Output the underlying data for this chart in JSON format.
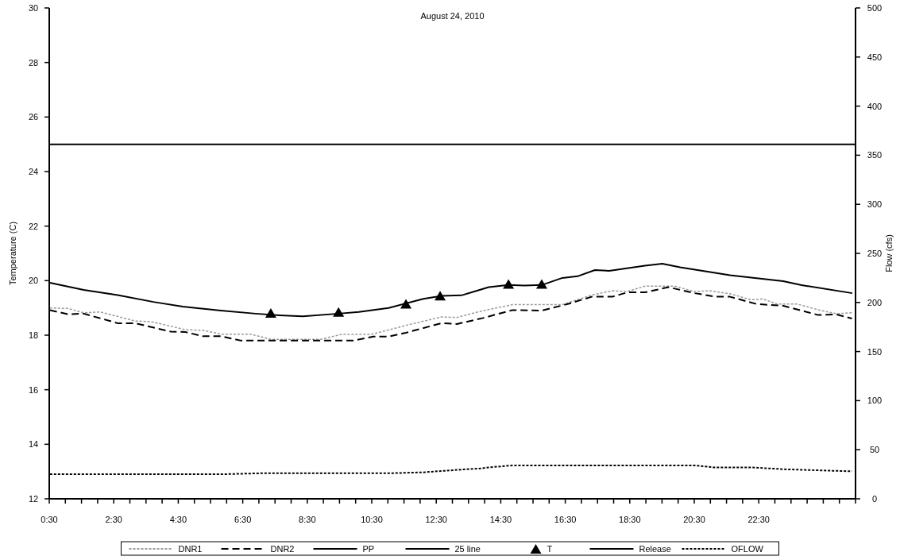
{
  "chart_data": {
    "type": "line",
    "title": "August 24, 2010",
    "ylabel": "Temperature (C)",
    "y2label": "Flow (cfs)",
    "xlim": [
      0.5,
      25.5
    ],
    "xticks": [
      {
        "value": 0.5,
        "label": "0:30"
      },
      {
        "value": 1,
        "label": null
      },
      {
        "value": 1.5,
        "label": null
      },
      {
        "value": 2,
        "label": null
      },
      {
        "value": 2.5,
        "label": "2:30"
      },
      {
        "value": 3,
        "label": null
      },
      {
        "value": 3.5,
        "label": null
      },
      {
        "value": 4,
        "label": null
      },
      {
        "value": 4.5,
        "label": "4:30"
      },
      {
        "value": 5,
        "label": null
      },
      {
        "value": 5.5,
        "label": null
      },
      {
        "value": 6,
        "label": null
      },
      {
        "value": 6.5,
        "label": "6:30"
      },
      {
        "value": 7,
        "label": null
      },
      {
        "value": 7.5,
        "label": null
      },
      {
        "value": 8,
        "label": null
      },
      {
        "value": 8.5,
        "label": "8:30"
      },
      {
        "value": 9,
        "label": null
      },
      {
        "value": 9.5,
        "label": null
      },
      {
        "value": 10,
        "label": null
      },
      {
        "value": 10.5,
        "label": "10:30"
      },
      {
        "value": 11,
        "label": null
      },
      {
        "value": 11.5,
        "label": null
      },
      {
        "value": 12,
        "label": null
      },
      {
        "value": 12.5,
        "label": "12:30"
      },
      {
        "value": 13,
        "label": null
      },
      {
        "value": 13.5,
        "label": null
      },
      {
        "value": 14,
        "label": null
      },
      {
        "value": 14.5,
        "label": "14:30"
      },
      {
        "value": 15,
        "label": null
      },
      {
        "value": 15.5,
        "label": null
      },
      {
        "value": 16,
        "label": null
      },
      {
        "value": 16.5,
        "label": "16:30"
      },
      {
        "value": 17,
        "label": null
      },
      {
        "value": 17.5,
        "label": null
      },
      {
        "value": 18,
        "label": null
      },
      {
        "value": 18.5,
        "label": "18:30"
      },
      {
        "value": 19,
        "label": null
      },
      {
        "value": 19.5,
        "label": null
      },
      {
        "value": 20,
        "label": null
      },
      {
        "value": 20.5,
        "label": "20:30"
      },
      {
        "value": 21,
        "label": null
      },
      {
        "value": 21.5,
        "label": null
      },
      {
        "value": 22,
        "label": null
      },
      {
        "value": 22.5,
        "label": "22:30"
      },
      {
        "value": 23,
        "label": null
      },
      {
        "value": 23.5,
        "label": null
      },
      {
        "value": 24,
        "label": null
      },
      {
        "value": 24.5,
        "label": null
      },
      {
        "value": 25,
        "label": null
      },
      {
        "value": 25.5,
        "label": null
      }
    ],
    "ylim": [
      12,
      30
    ],
    "yticks": [
      12,
      14,
      16,
      18,
      20,
      22,
      24,
      26,
      28,
      30
    ],
    "y2lim": [
      0,
      500
    ],
    "y2ticks": [
      0,
      50,
      100,
      150,
      200,
      250,
      300,
      350,
      400,
      450,
      500
    ],
    "grid": false,
    "legend": "bottom",
    "series": [
      {
        "name": "DNR1",
        "color": "#9a9a9a",
        "line_style": "dotted",
        "x": [
          0.52,
          1.07,
          1.57,
          2.08,
          2.62,
          3.16,
          3.63,
          4.27,
          4.71,
          5.27,
          5.82,
          6.73,
          7.37,
          8.09,
          8.92,
          9.56,
          10.48,
          11.56,
          12.66,
          13.14,
          13.95,
          14.86,
          15.77,
          16.41,
          17.32,
          17.96,
          18.43,
          18.97,
          19.88,
          20.52,
          20.97,
          21.61,
          22.25,
          22.62,
          23.07,
          23.7,
          24.44,
          24.9,
          25.39
        ],
        "values": [
          19.0,
          18.98,
          18.82,
          18.85,
          18.69,
          18.52,
          18.5,
          18.33,
          18.2,
          18.18,
          18.04,
          18.04,
          17.85,
          17.85,
          17.85,
          18.03,
          18.03,
          18.36,
          18.67,
          18.65,
          18.9,
          19.12,
          19.12,
          19.12,
          19.47,
          19.63,
          19.6,
          19.8,
          19.8,
          19.6,
          19.63,
          19.52,
          19.3,
          19.33,
          19.14,
          19.14,
          18.9,
          18.79,
          18.82
        ]
      },
      {
        "name": "DNR2",
        "color": "#000000",
        "line_style": "dashed",
        "x": [
          0.52,
          1.07,
          1.57,
          2.62,
          3.16,
          4.27,
          4.71,
          5.27,
          5.82,
          6.45,
          8.09,
          9.91,
          10.55,
          11.02,
          11.56,
          12.66,
          13.14,
          13.95,
          14.86,
          15.77,
          16.6,
          17.32,
          17.96,
          18.43,
          18.97,
          19.7,
          20.52,
          21.16,
          21.61,
          22.44,
          23.26,
          24.34,
          24.9,
          25.39
        ],
        "values": [
          18.92,
          18.77,
          18.79,
          18.44,
          18.44,
          18.13,
          18.12,
          17.96,
          17.96,
          17.8,
          17.8,
          17.8,
          17.95,
          17.95,
          18.09,
          18.44,
          18.41,
          18.63,
          18.92,
          18.9,
          19.15,
          19.41,
          19.41,
          19.57,
          19.57,
          19.76,
          19.54,
          19.41,
          19.41,
          19.14,
          19.08,
          18.74,
          18.76,
          18.61
        ]
      },
      {
        "name": "PP",
        "color": "#000000",
        "line_style": "solid",
        "x": [
          0.52,
          1.57,
          2.62,
          3.73,
          4.64,
          5.82,
          6.9,
          7.64,
          8.36,
          9.47,
          10.1,
          11.02,
          12.1,
          12.67,
          13.28,
          13.68,
          14.13,
          14.74,
          15.23,
          15.77,
          16.41,
          16.88,
          17.42,
          17.86,
          18.97,
          19.51,
          20.06,
          21.61,
          23.26,
          23.8,
          25.4
        ],
        "values": [
          19.92,
          19.66,
          19.47,
          19.22,
          19.05,
          18.9,
          18.79,
          18.73,
          18.69,
          18.79,
          18.85,
          19.0,
          19.33,
          19.44,
          19.46,
          19.6,
          19.76,
          19.84,
          19.82,
          19.84,
          20.1,
          20.16,
          20.39,
          20.36,
          20.55,
          20.62,
          20.49,
          20.2,
          19.98,
          19.84,
          19.54
        ]
      },
      {
        "name": "25 line",
        "color": "#000000",
        "line_style": "solid",
        "x": [
          0.5,
          25.5
        ],
        "values": [
          25,
          25
        ]
      },
      {
        "name": "T",
        "type": "scatter",
        "color": "#000000",
        "marker": "triangle",
        "x": [
          7.37,
          9.47,
          11.56,
          12.62,
          14.74,
          15.77
        ],
        "values": [
          18.79,
          18.82,
          19.12,
          19.42,
          19.85,
          19.85
        ]
      },
      {
        "name": "Release",
        "color": "#000000",
        "line_style": "solid",
        "axis": "y2"
      },
      {
        "name": "OFLOW",
        "color": "#000000",
        "line_style": "dotted",
        "axis": "y2",
        "x": [
          0.52,
          5.82,
          7.04,
          11.02,
          12.1,
          13.37,
          13.9,
          14.13,
          14.86,
          16.41,
          20.52,
          21.11,
          22.25,
          23.37,
          25.39
        ],
        "values": [
          25,
          25,
          26,
          26,
          27,
          30,
          31,
          32,
          34,
          34,
          34,
          32,
          32,
          30,
          28
        ]
      }
    ]
  }
}
